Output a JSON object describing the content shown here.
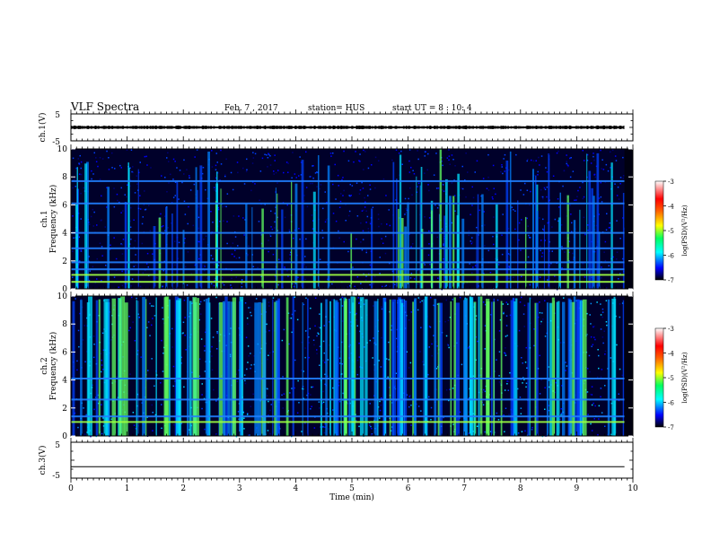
{
  "header": {
    "title": "VLF Spectra",
    "date": "Feb. 7 , 2017",
    "station": "station= HUS",
    "start_ut": "start UT =  8 : 10: 4"
  },
  "chart_data": [
    {
      "type": "line",
      "panel": "ch1-waveform",
      "ylabel": "ch.1(V)",
      "ylim": [
        -5,
        5
      ],
      "ytick_labels": [
        "5",
        "-5"
      ],
      "signal_level": 0,
      "signal_amplitude": 0.5,
      "color": "#000000"
    },
    {
      "type": "heatmap",
      "panel": "ch1-spectrogram",
      "ylabel": "ch.1\nFrequency (kHz)",
      "ylim": [
        0,
        10
      ],
      "ytick_labels": [
        "0",
        "2",
        "4",
        "6",
        "8",
        "10"
      ],
      "horizontal_lines_khz": [
        0.5,
        1.0,
        1.4,
        1.9,
        2.9,
        4.0,
        6.1,
        7.7
      ],
      "colorbar": {
        "label": "log(PSD)(V²/Hz)",
        "range": [
          -7,
          -3
        ],
        "tick_labels": [
          "-3",
          "-4",
          "-5",
          "-6",
          "-7"
        ]
      }
    },
    {
      "type": "heatmap",
      "panel": "ch2-spectrogram",
      "ylabel": "ch.2\nFrequency (kHz)",
      "ylim": [
        0,
        10
      ],
      "ytick_labels": [
        "0",
        "2",
        "4",
        "6",
        "8",
        "10"
      ],
      "horizontal_lines_khz": [
        1.0,
        1.4,
        2.6,
        4.1
      ],
      "colorbar": {
        "label": "log(PSD)(V²/Hz)",
        "range": [
          -7,
          -3
        ],
        "tick_labels": [
          "-3",
          "-4",
          "-5",
          "-6",
          "-7"
        ]
      }
    },
    {
      "type": "line",
      "panel": "ch3-waveform",
      "ylabel": "ch.3(V)",
      "ylim": [
        -5,
        5
      ],
      "ytick_labels": [
        "5",
        "-5"
      ],
      "signal_level": -1.8,
      "signal_amplitude": 0,
      "color": "#000000"
    }
  ],
  "x_axis": {
    "label": "Time (min)",
    "range": [
      0,
      10
    ],
    "tick_labels": [
      "0",
      "1",
      "2",
      "3",
      "4",
      "5",
      "6",
      "7",
      "8",
      "9",
      "10"
    ],
    "data_end": 9.85
  },
  "colormap": [
    "#000000",
    "#00005a",
    "#0000ff",
    "#00a0ff",
    "#00ffff",
    "#00ff80",
    "#80ff00",
    "#ffff00",
    "#ff8000",
    "#ff0000",
    "#ffffff"
  ]
}
